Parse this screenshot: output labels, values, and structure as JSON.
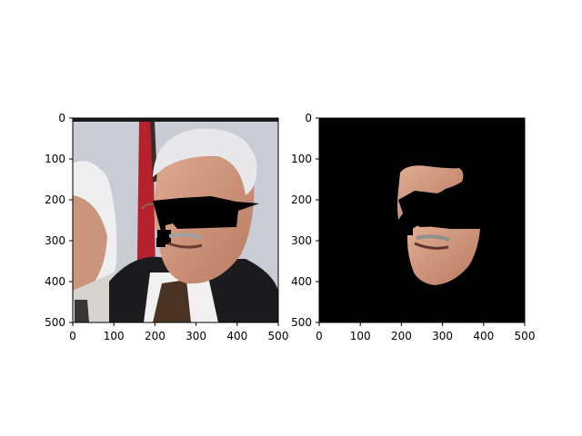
{
  "chart_data": [
    {
      "type": "image",
      "panel": "left",
      "title": "",
      "xlabel": "",
      "ylabel": "",
      "xlim": [
        0,
        500
      ],
      "ylim": [
        500,
        0
      ],
      "xticks": [
        0,
        100,
        200,
        300,
        400,
        500
      ],
      "yticks": [
        0,
        100,
        200,
        300,
        400,
        500
      ],
      "image_content": "photograph: two elderly men in suits, right face partially occluded by black mask over eyes",
      "colors": {
        "background": "#c9ccd4",
        "mask": "#000000",
        "suit": "#1b1b1e",
        "flag_red": "#b6222b"
      }
    },
    {
      "type": "image",
      "panel": "right",
      "title": "",
      "xlabel": "",
      "ylabel": "",
      "xlim": [
        0,
        500
      ],
      "ylim": [
        500,
        0
      ],
      "xticks": [
        0,
        100,
        200,
        300,
        400,
        500
      ],
      "yticks": [
        0,
        100,
        200,
        300,
        400,
        500
      ],
      "image_content": "segmented face region on black background with occluded eye area",
      "colors": {
        "background": "#000000",
        "skin": "#c98f77"
      }
    }
  ]
}
